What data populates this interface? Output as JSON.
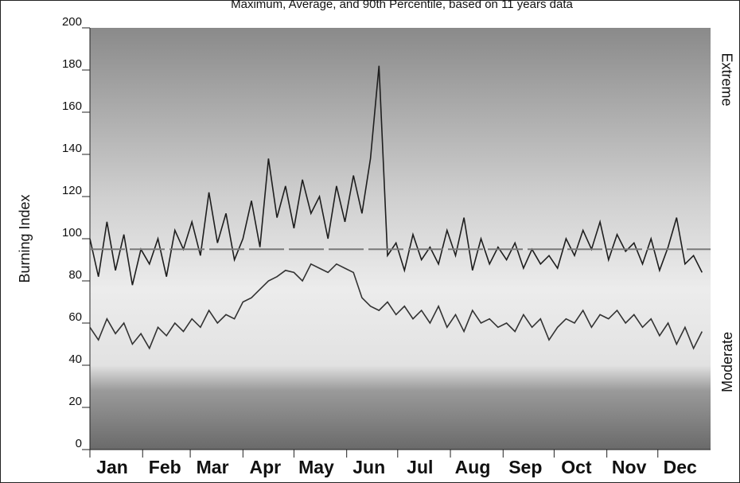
{
  "chart_data": {
    "type": "line",
    "title": "Maximum, Average, and 90th Percentile, based on 11 years data",
    "y_label": "Burning Index",
    "band_labels": [
      "Extreme",
      "Moderate"
    ],
    "xlim": [
      1,
      366
    ],
    "xticks": [
      {
        "value": 1,
        "label": "Jan"
      },
      {
        "value": 32,
        "label": "Feb"
      },
      {
        "value": 60,
        "label": "Mar"
      },
      {
        "value": 91,
        "label": "Apr"
      },
      {
        "value": 121,
        "label": "May"
      },
      {
        "value": 152,
        "label": "Jun"
      },
      {
        "value": 182,
        "label": "Jul"
      },
      {
        "value": 213,
        "label": "Aug"
      },
      {
        "value": 244,
        "label": "Sep"
      },
      {
        "value": 274,
        "label": "Oct"
      },
      {
        "value": 305,
        "label": "Nov"
      },
      {
        "value": 335,
        "label": "Dec"
      }
    ],
    "ylim": [
      0,
      200
    ],
    "yticks": [
      0,
      20,
      40,
      60,
      80,
      100,
      120,
      140,
      160,
      180,
      200
    ],
    "series": [
      {
        "name": "Maximum",
        "color": "#1e1e1e",
        "x": [
          1,
          6,
          11,
          16,
          21,
          26,
          31,
          36,
          41,
          46,
          51,
          56,
          61,
          66,
          71,
          76,
          81,
          86,
          91,
          96,
          101,
          106,
          111,
          116,
          121,
          126,
          131,
          136,
          141,
          146,
          151,
          156,
          161,
          166,
          171,
          176,
          181,
          186,
          191,
          196,
          201,
          206,
          211,
          216,
          221,
          226,
          231,
          236,
          241,
          246,
          251,
          256,
          261,
          266,
          271,
          276,
          281,
          286,
          291,
          296,
          301,
          306,
          311,
          316,
          321,
          326,
          331,
          336,
          341,
          346,
          351,
          356,
          361
        ],
        "values": [
          100,
          82,
          108,
          85,
          102,
          78,
          95,
          88,
          100,
          82,
          104,
          95,
          108,
          92,
          122,
          98,
          112,
          90,
          100,
          118,
          96,
          138,
          110,
          125,
          105,
          128,
          112,
          120,
          100,
          125,
          108,
          130,
          112,
          138,
          182,
          92,
          98,
          85,
          102,
          90,
          96,
          88,
          104,
          92,
          110,
          85,
          100,
          88,
          96,
          90,
          98,
          86,
          95,
          88,
          92,
          86,
          100,
          92,
          104,
          95,
          108,
          90,
          102,
          94,
          98,
          88,
          100,
          85,
          96,
          110,
          88,
          92,
          84
        ]
      },
      {
        "name": "Average",
        "color": "#333333",
        "x": [
          1,
          6,
          11,
          16,
          21,
          26,
          31,
          36,
          41,
          46,
          51,
          56,
          61,
          66,
          71,
          76,
          81,
          86,
          91,
          96,
          101,
          106,
          111,
          116,
          121,
          126,
          131,
          136,
          141,
          146,
          151,
          156,
          161,
          166,
          171,
          176,
          181,
          186,
          191,
          196,
          201,
          206,
          211,
          216,
          221,
          226,
          231,
          236,
          241,
          246,
          251,
          256,
          261,
          266,
          271,
          276,
          281,
          286,
          291,
          296,
          301,
          306,
          311,
          316,
          321,
          326,
          331,
          336,
          341,
          346,
          351,
          356,
          361
        ],
        "values": [
          58,
          52,
          62,
          55,
          60,
          50,
          55,
          48,
          58,
          54,
          60,
          56,
          62,
          58,
          66,
          60,
          64,
          62,
          70,
          72,
          76,
          80,
          82,
          85,
          84,
          80,
          88,
          86,
          84,
          88,
          86,
          84,
          72,
          68,
          66,
          70,
          64,
          68,
          62,
          66,
          60,
          68,
          58,
          64,
          56,
          66,
          60,
          62,
          58,
          60,
          56,
          64,
          58,
          62,
          52,
          58,
          62,
          60,
          66,
          58,
          64,
          62,
          66,
          60,
          64,
          58,
          62,
          54,
          60,
          50,
          58,
          48,
          56
        ]
      },
      {
        "name": "90th Percentile",
        "color": "#7a7a7a",
        "x": [
          1,
          366
        ],
        "values": [
          95,
          95
        ]
      }
    ]
  }
}
